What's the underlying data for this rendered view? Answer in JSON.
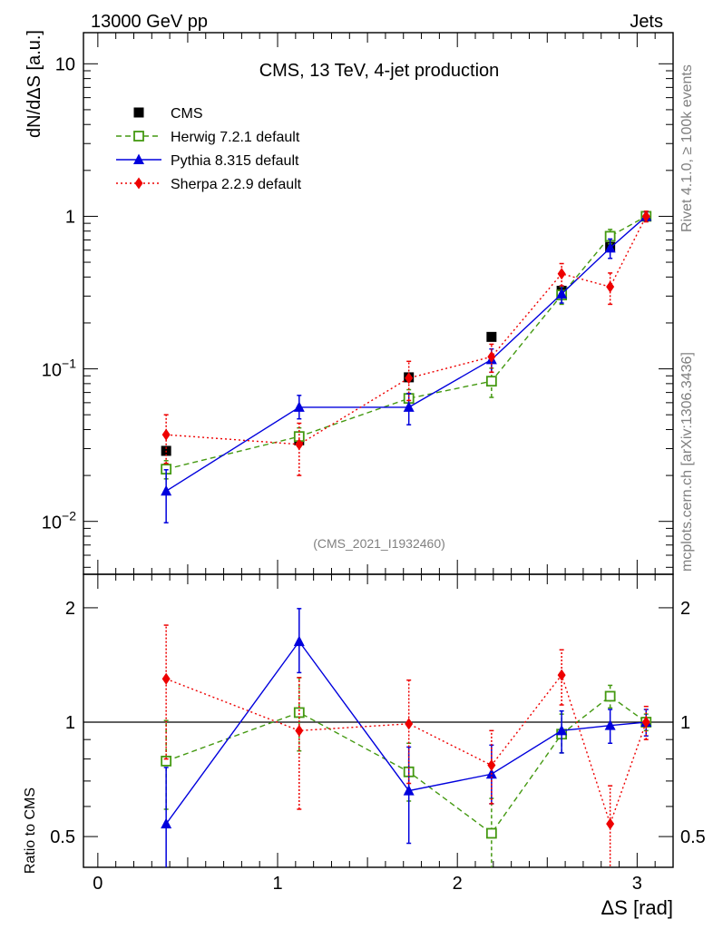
{
  "header": {
    "left": "13000 GeV pp",
    "right": "Jets"
  },
  "side_labels": {
    "rivet": "Rivet 4.1.0, ≥ 100k events",
    "source": "mcplots.cern.ch [arXiv:1306.3436]"
  },
  "chart_data": [
    {
      "type": "scatter",
      "title": "CMS, 13 TeV, 4-jet production",
      "analysis_tag": "(CMS_2021_I1932460)",
      "ylabel": "dN/dΔS [a.u.]",
      "yscale": "log",
      "ylim": [
        0.0045,
        16
      ],
      "xlim": [
        -0.08,
        3.2
      ],
      "yticks": [
        {
          "value": 0.01,
          "base": "10",
          "exp": "−2"
        },
        {
          "value": 0.1,
          "base": "10",
          "exp": "−1"
        },
        {
          "value": 1,
          "label": "1"
        },
        {
          "value": 10,
          "label": "10"
        }
      ],
      "x": [
        0.38,
        1.12,
        1.73,
        2.19,
        2.58,
        2.85,
        3.05
      ],
      "series": [
        {
          "name": "CMS",
          "color": "#000000",
          "marker": "filled-square",
          "line": "none",
          "values": [
            0.029,
            0.034,
            0.088,
            0.162,
            0.325,
            0.63,
            1.0
          ],
          "err_low": [
            0.0,
            0.0,
            0.0,
            0.0,
            0.0,
            0.0,
            0.0
          ],
          "err_high": [
            0.0,
            0.0,
            0.0,
            0.0,
            0.0,
            0.0,
            0.0
          ]
        },
        {
          "name": "Herwig 7.2.1 default",
          "color": "#449911",
          "marker": "open-square",
          "line": "dashed",
          "values": [
            0.022,
            0.036,
            0.064,
            0.083,
            0.305,
            0.74,
            1.0
          ],
          "err_low": [
            0.003,
            0.005,
            0.009,
            0.018,
            0.04,
            0.08,
            0.05
          ],
          "err_high": [
            0.003,
            0.005,
            0.009,
            0.018,
            0.04,
            0.08,
            0.05
          ]
        },
        {
          "name": "Pythia 8.315 default",
          "color": "#0000dd",
          "marker": "triangle",
          "line": "solid",
          "values": [
            0.0158,
            0.056,
            0.056,
            0.115,
            0.31,
            0.62,
            1.0
          ],
          "err_low": [
            0.006,
            0.009,
            0.013,
            0.02,
            0.04,
            0.09,
            0.07
          ],
          "err_high": [
            0.006,
            0.011,
            0.013,
            0.02,
            0.04,
            0.09,
            0.07
          ]
        },
        {
          "name": "Sherpa 2.2.9 default",
          "color": "#ee0000",
          "marker": "diamond",
          "line": "dotted",
          "values": [
            0.037,
            0.032,
            0.087,
            0.12,
            0.42,
            0.345,
            1.0
          ],
          "err_low": [
            0.013,
            0.012,
            0.025,
            0.025,
            0.07,
            0.08,
            0.08
          ],
          "err_high": [
            0.013,
            0.012,
            0.025,
            0.025,
            0.07,
            0.08,
            0.08
          ]
        }
      ]
    },
    {
      "type": "scatter",
      "ylabel": "Ratio to CMS",
      "xlabel": "ΔS [rad]",
      "yscale": "log",
      "ylim": [
        0.415,
        2.45
      ],
      "xlim": [
        -0.08,
        3.2
      ],
      "xticks": [
        0,
        1,
        2,
        3
      ],
      "yticks": [
        0.5,
        1,
        2
      ],
      "reference_line": 1,
      "x": [
        0.38,
        1.12,
        1.73,
        2.19,
        2.58,
        2.85,
        3.05
      ],
      "series": [
        {
          "name": "Herwig 7.2.1 default",
          "color": "#449911",
          "marker": "open-square",
          "line": "dashed",
          "values": [
            0.79,
            1.06,
            0.74,
            0.51,
            0.93,
            1.17,
            1.0
          ],
          "err_low": [
            0.2,
            0.22,
            0.12,
            0.1,
            0.1,
            0.08,
            0.05
          ],
          "err_high": [
            0.22,
            0.25,
            0.14,
            0.12,
            0.12,
            0.08,
            0.05
          ]
        },
        {
          "name": "Pythia 8.315 default",
          "color": "#0000dd",
          "marker": "triangle",
          "line": "solid",
          "values": [
            0.54,
            1.63,
            0.66,
            0.73,
            0.95,
            0.98,
            1.0
          ],
          "err_low": [
            0.2,
            0.28,
            0.18,
            0.12,
            0.12,
            0.1,
            0.08
          ],
          "err_high": [
            0.22,
            0.36,
            0.2,
            0.14,
            0.12,
            0.1,
            0.08
          ]
        },
        {
          "name": "Sherpa 2.2.9 default",
          "color": "#ee0000",
          "marker": "diamond",
          "line": "dotted",
          "values": [
            1.3,
            0.95,
            0.99,
            0.77,
            1.33,
            0.54,
            1.0
          ],
          "err_low": [
            0.5,
            0.36,
            0.3,
            0.16,
            0.22,
            0.14,
            0.1
          ],
          "err_high": [
            0.5,
            0.36,
            0.3,
            0.18,
            0.22,
            0.14,
            0.1
          ]
        }
      ]
    }
  ]
}
